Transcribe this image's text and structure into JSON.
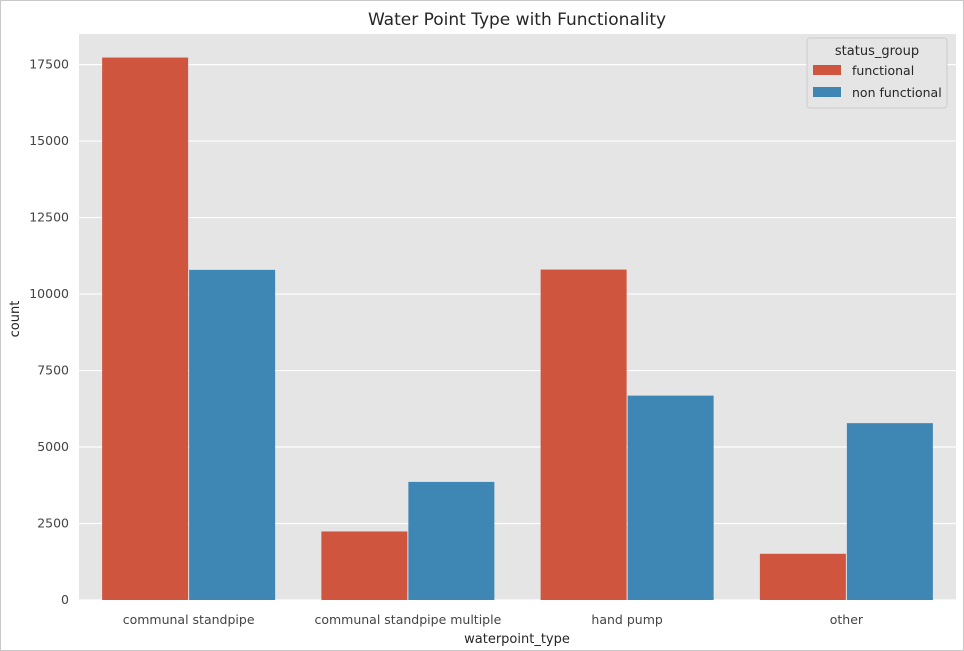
{
  "chart_data": {
    "type": "bar",
    "title": "Water Point Type with Functionality",
    "xlabel": "waterpoint_type",
    "ylabel": "count",
    "categories": [
      "communal standpipe",
      "communal standpipe multiple",
      "hand pump",
      "other"
    ],
    "series": [
      {
        "name": "functional",
        "values": [
          17730,
          2240,
          10800,
          1510
        ],
        "color": "#d0553e"
      },
      {
        "name": "non functional",
        "values": [
          10790,
          3860,
          6680,
          5780
        ],
        "color": "#3e87b5"
      }
    ],
    "ylim": [
      0,
      18500
    ],
    "yticks": [
      "0",
      "2500",
      "5000",
      "7500",
      "10000",
      "12500",
      "15000",
      "17500"
    ],
    "grid": true,
    "legend": {
      "title": "status_group",
      "placement": "top-right"
    },
    "colors": {
      "background": "#e5e5e5",
      "grid": "#ffffff"
    }
  }
}
